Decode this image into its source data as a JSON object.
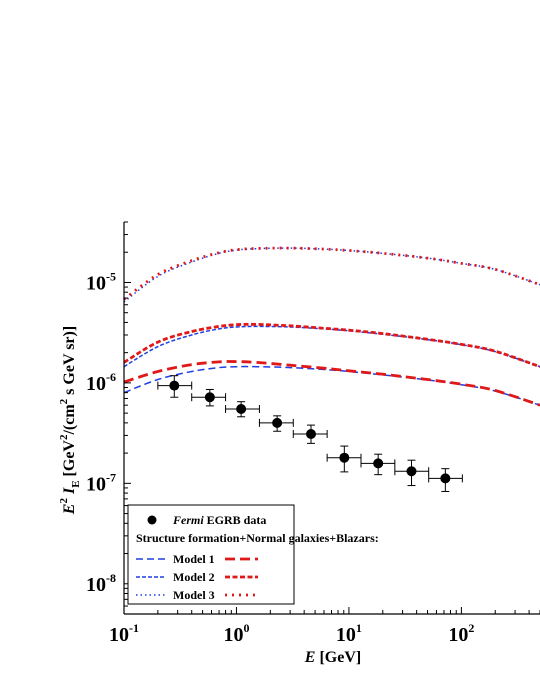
{
  "chart_data": {
    "type": "line",
    "x_scale": "log",
    "y_scale": "log",
    "xlim": [
      0.1,
      500
    ],
    "ylim": [
      5e-09,
      4e-05
    ],
    "x_ticks": [
      {
        "value": 0.1,
        "base": "10",
        "exp": "-1"
      },
      {
        "value": 1,
        "base": "10",
        "exp": "0"
      },
      {
        "value": 10,
        "base": "10",
        "exp": "1"
      },
      {
        "value": 100,
        "base": "10",
        "exp": "2"
      }
    ],
    "y_ticks": [
      {
        "value": 1e-08,
        "base": "10",
        "exp": "-8"
      },
      {
        "value": 1e-07,
        "base": "10",
        "exp": "-7"
      },
      {
        "value": 1e-06,
        "base": "10",
        "exp": "-6"
      },
      {
        "value": 1e-05,
        "base": "10",
        "exp": "-5"
      }
    ],
    "xlabel": {
      "main": "E",
      "unit": " [GeV]"
    },
    "ylabel": {
      "e": "E",
      "e_sup": "2",
      "i": " I",
      "i_sub": "E",
      "bracket": " [GeV",
      "gev_sup": "2",
      "mid": "/(cm",
      "cm_sup": "2",
      "tail": " s GeV sr)]"
    },
    "legend": {
      "placement": "bottom-left",
      "data_label_italic": "Fermi",
      "data_label_rest": " EGRB data",
      "group_title": "Structure formation+Normal galaxies+Blazars:",
      "models": [
        "Model 1",
        "Model 2",
        "Model 3"
      ]
    },
    "points": [
      {
        "x": 0.28,
        "y": 9.4e-07,
        "xlo": 0.2,
        "xhi": 0.4,
        "ylo": 7.2e-07,
        "yhi": 1.18e-06
      },
      {
        "x": 0.58,
        "y": 7.2e-07,
        "xlo": 0.4,
        "xhi": 0.8,
        "ylo": 5.9e-07,
        "yhi": 8.6e-07
      },
      {
        "x": 1.1,
        "y": 5.5e-07,
        "xlo": 0.8,
        "xhi": 1.6,
        "ylo": 4.6e-07,
        "yhi": 6.5e-07
      },
      {
        "x": 2.3,
        "y": 4e-07,
        "xlo": 1.6,
        "xhi": 3.2,
        "ylo": 3.3e-07,
        "yhi": 4.7e-07
      },
      {
        "x": 4.6,
        "y": 3.1e-07,
        "xlo": 3.2,
        "xhi": 6.4,
        "ylo": 2.5e-07,
        "yhi": 3.8e-07
      },
      {
        "x": 9.1,
        "y": 1.8e-07,
        "xlo": 6.4,
        "xhi": 12.8,
        "ylo": 1.3e-07,
        "yhi": 2.35e-07
      },
      {
        "x": 18.2,
        "y": 1.58e-07,
        "xlo": 12.8,
        "xhi": 25.6,
        "ylo": 1.22e-07,
        "yhi": 1.95e-07
      },
      {
        "x": 36,
        "y": 1.32e-07,
        "xlo": 25.6,
        "xhi": 51.2,
        "ylo": 9.5e-08,
        "yhi": 1.7e-07
      },
      {
        "x": 72,
        "y": 1.12e-07,
        "xlo": 51.2,
        "xhi": 102,
        "ylo": 8.3e-08,
        "yhi": 1.4e-07
      }
    ],
    "series": [
      {
        "group": "blue",
        "model": 1,
        "x": [
          0.1,
          0.2,
          0.4,
          0.7,
          1.0,
          1.5,
          3,
          6,
          10,
          20,
          50,
          100,
          200,
          500
        ],
        "y": [
          8e-07,
          1.08e-06,
          1.3e-06,
          1.42e-06,
          1.45e-06,
          1.45e-06,
          1.42e-06,
          1.36e-06,
          1.3e-06,
          1.2e-06,
          1.07e-06,
          9.6e-07,
          8.3e-07,
          6e-07
        ]
      },
      {
        "group": "red",
        "model": 1,
        "x": [
          0.1,
          0.2,
          0.4,
          0.7,
          1.0,
          1.5,
          3,
          6,
          10,
          20,
          50,
          100,
          200,
          500
        ],
        "y": [
          1.02e-06,
          1.3e-06,
          1.52e-06,
          1.62e-06,
          1.63e-06,
          1.6e-06,
          1.5e-06,
          1.4e-06,
          1.32e-06,
          1.22e-06,
          1.08e-06,
          9.7e-07,
          8.4e-07,
          6e-07
        ]
      },
      {
        "group": "blue",
        "model": 2,
        "x": [
          0.1,
          0.2,
          0.4,
          0.7,
          1.0,
          1.5,
          3,
          6,
          10,
          20,
          50,
          100,
          200,
          500
        ],
        "y": [
          1.45e-06,
          2.3e-06,
          3e-06,
          3.45e-06,
          3.6e-06,
          3.65e-06,
          3.6e-06,
          3.45e-06,
          3.3e-06,
          3.05e-06,
          2.7e-06,
          2.4e-06,
          2.05e-06,
          1.45e-06
        ]
      },
      {
        "group": "red",
        "model": 2,
        "x": [
          0.1,
          0.2,
          0.4,
          0.7,
          1.0,
          1.5,
          3,
          6,
          10,
          20,
          50,
          100,
          200,
          500
        ],
        "y": [
          1.6e-06,
          2.55e-06,
          3.25e-06,
          3.65e-06,
          3.8e-06,
          3.82e-06,
          3.7e-06,
          3.5e-06,
          3.35e-06,
          3.1e-06,
          2.72e-06,
          2.42e-06,
          2.07e-06,
          1.45e-06
        ]
      },
      {
        "group": "blue",
        "model": 3,
        "x": [
          0.1,
          0.2,
          0.4,
          0.7,
          1.0,
          1.5,
          3,
          6,
          10,
          20,
          50,
          100,
          200,
          500
        ],
        "y": [
          6.4e-06,
          1.15e-05,
          1.6e-05,
          1.95e-05,
          2.1e-05,
          2.17e-05,
          2.2e-05,
          2.15e-05,
          2.08e-05,
          1.95e-05,
          1.75e-05,
          1.55e-05,
          1.35e-05,
          9.5e-06
        ]
      },
      {
        "group": "red",
        "model": 3,
        "x": [
          0.1,
          0.2,
          0.4,
          0.7,
          1.0,
          1.5,
          3,
          6,
          10,
          20,
          50,
          100,
          200,
          500
        ],
        "y": [
          6.8e-06,
          1.2e-05,
          1.65e-05,
          1.98e-05,
          2.12e-05,
          2.18e-05,
          2.2e-05,
          2.15e-05,
          2.08e-05,
          1.95e-05,
          1.75e-05,
          1.55e-05,
          1.35e-05,
          9.5e-06
        ]
      }
    ],
    "colors": {
      "blue": "#1f3fe0",
      "red": "#e01818",
      "point": "#000000"
    }
  }
}
